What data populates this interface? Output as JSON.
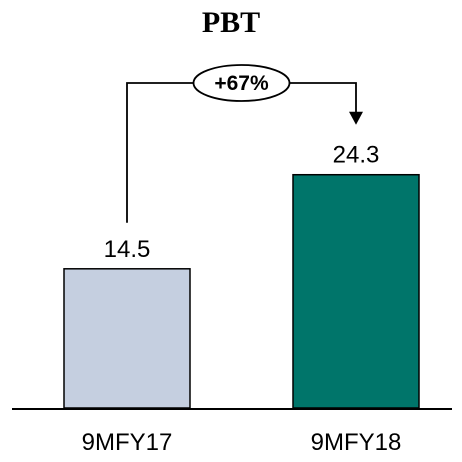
{
  "chart_data": {
    "type": "bar",
    "title": "PBT",
    "xlabel": "",
    "ylabel": "",
    "categories": [
      "9MFY17",
      "9MFY18"
    ],
    "values": [
      14.5,
      24.3
    ],
    "value_labels": [
      "14.5",
      "24.3"
    ],
    "bar_colors": [
      "#c5cfe0",
      "#00756a"
    ],
    "ylim": [
      0,
      30
    ],
    "grid": false,
    "legend": "none",
    "annotation": {
      "text": "+67%",
      "from": "9MFY17",
      "to": "9MFY18"
    }
  }
}
